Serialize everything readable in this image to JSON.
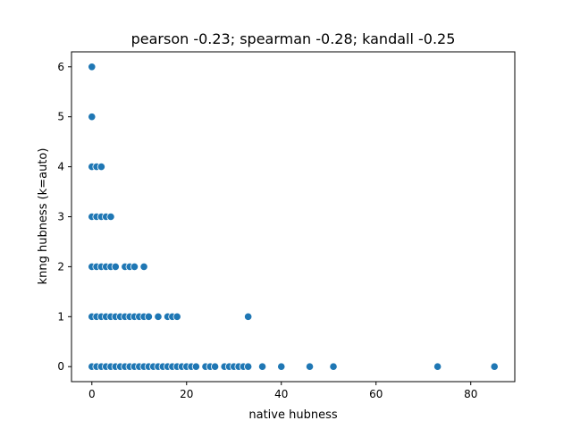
{
  "chart_data": {
    "type": "scatter",
    "title": "pearson -0.23; spearman -0.28; kandall -0.25",
    "xlabel": "native hubness",
    "ylabel": "knng hubness (k=auto)",
    "xlim": [
      -4.3,
      89.3
    ],
    "ylim": [
      -0.3,
      6.3
    ],
    "xticks": [
      0,
      20,
      40,
      60,
      80
    ],
    "yticks": [
      0,
      1,
      2,
      3,
      4,
      5,
      6
    ],
    "grid": false,
    "marker_color": "#1f77b4",
    "points": [
      {
        "x": 0,
        "y": 6
      },
      {
        "x": 0,
        "y": 5
      },
      {
        "x": 0,
        "y": 4
      },
      {
        "x": 1,
        "y": 4
      },
      {
        "x": 2,
        "y": 4
      },
      {
        "x": 0,
        "y": 3
      },
      {
        "x": 1,
        "y": 3
      },
      {
        "x": 2,
        "y": 3
      },
      {
        "x": 3,
        "y": 3
      },
      {
        "x": 4,
        "y": 3
      },
      {
        "x": 0,
        "y": 2
      },
      {
        "x": 1,
        "y": 2
      },
      {
        "x": 2,
        "y": 2
      },
      {
        "x": 3,
        "y": 2
      },
      {
        "x": 4,
        "y": 2
      },
      {
        "x": 5,
        "y": 2
      },
      {
        "x": 7,
        "y": 2
      },
      {
        "x": 8,
        "y": 2
      },
      {
        "x": 9,
        "y": 2
      },
      {
        "x": 11,
        "y": 2
      },
      {
        "x": 0,
        "y": 1
      },
      {
        "x": 1,
        "y": 1
      },
      {
        "x": 2,
        "y": 1
      },
      {
        "x": 3,
        "y": 1
      },
      {
        "x": 4,
        "y": 1
      },
      {
        "x": 5,
        "y": 1
      },
      {
        "x": 6,
        "y": 1
      },
      {
        "x": 7,
        "y": 1
      },
      {
        "x": 8,
        "y": 1
      },
      {
        "x": 9,
        "y": 1
      },
      {
        "x": 10,
        "y": 1
      },
      {
        "x": 11,
        "y": 1
      },
      {
        "x": 12,
        "y": 1
      },
      {
        "x": 14,
        "y": 1
      },
      {
        "x": 16,
        "y": 1
      },
      {
        "x": 17,
        "y": 1
      },
      {
        "x": 18,
        "y": 1
      },
      {
        "x": 33,
        "y": 1
      },
      {
        "x": 0,
        "y": 0
      },
      {
        "x": 1,
        "y": 0
      },
      {
        "x": 2,
        "y": 0
      },
      {
        "x": 3,
        "y": 0
      },
      {
        "x": 4,
        "y": 0
      },
      {
        "x": 5,
        "y": 0
      },
      {
        "x": 6,
        "y": 0
      },
      {
        "x": 7,
        "y": 0
      },
      {
        "x": 8,
        "y": 0
      },
      {
        "x": 9,
        "y": 0
      },
      {
        "x": 10,
        "y": 0
      },
      {
        "x": 11,
        "y": 0
      },
      {
        "x": 12,
        "y": 0
      },
      {
        "x": 13,
        "y": 0
      },
      {
        "x": 14,
        "y": 0
      },
      {
        "x": 15,
        "y": 0
      },
      {
        "x": 16,
        "y": 0
      },
      {
        "x": 17,
        "y": 0
      },
      {
        "x": 18,
        "y": 0
      },
      {
        "x": 19,
        "y": 0
      },
      {
        "x": 20,
        "y": 0
      },
      {
        "x": 21,
        "y": 0
      },
      {
        "x": 22,
        "y": 0
      },
      {
        "x": 24,
        "y": 0
      },
      {
        "x": 25,
        "y": 0
      },
      {
        "x": 26,
        "y": 0
      },
      {
        "x": 28,
        "y": 0
      },
      {
        "x": 29,
        "y": 0
      },
      {
        "x": 30,
        "y": 0
      },
      {
        "x": 31,
        "y": 0
      },
      {
        "x": 32,
        "y": 0
      },
      {
        "x": 33,
        "y": 0
      },
      {
        "x": 36,
        "y": 0
      },
      {
        "x": 40,
        "y": 0
      },
      {
        "x": 46,
        "y": 0
      },
      {
        "x": 51,
        "y": 0
      },
      {
        "x": 73,
        "y": 0
      },
      {
        "x": 85,
        "y": 0
      }
    ]
  }
}
